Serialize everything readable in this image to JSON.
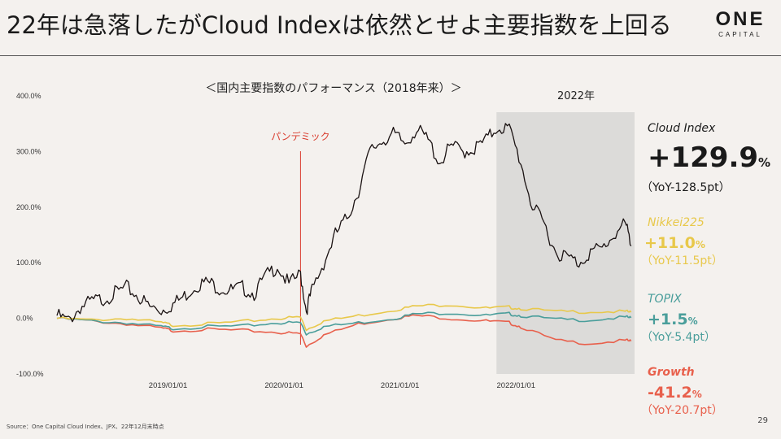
{
  "header": {
    "title": "22年は急落したがCloud Indexは依然とせよ主要指数を上回る",
    "logo_main": "ONE",
    "logo_sub": "CAPITAL"
  },
  "chart_data": {
    "type": "line",
    "title": "＜国内主要指数のパフォーマンス（2018年来）＞",
    "y_ticks": [
      "400.0%",
      "300.0%",
      "200.0%",
      "100.0%",
      "0.0%",
      "-100.0%"
    ],
    "y_values": [
      400,
      300,
      200,
      100,
      0,
      -100
    ],
    "ylim": [
      -100,
      400
    ],
    "x_ticks": [
      "2019/01/01",
      "2020/01/01",
      "2021/01/01",
      "2022/01/01"
    ],
    "annotations": {
      "pandemic_label": "パンデミック",
      "shade_label": "2022年"
    },
    "series": [
      {
        "name": "Cloud Index",
        "color": "#1a1212",
        "x": [
          2018.0,
          2018.1,
          2018.2,
          2018.3,
          2018.4,
          2018.5,
          2018.6,
          2018.7,
          2018.8,
          2018.9,
          2019.0,
          2019.1,
          2019.2,
          2019.3,
          2019.4,
          2019.5,
          2019.6,
          2019.7,
          2019.8,
          2019.9,
          2020.0,
          2020.1,
          2020.15,
          2020.2,
          2020.3,
          2020.4,
          2020.5,
          2020.6,
          2020.7,
          2020.8,
          2020.9,
          2021.0,
          2021.1,
          2021.2,
          2021.3,
          2021.4,
          2021.5,
          2021.6,
          2021.7,
          2021.8,
          2021.9,
          2022.0,
          2022.1,
          2022.2,
          2022.3,
          2022.4,
          2022.5,
          2022.6,
          2022.7,
          2022.8,
          2022.9,
          2022.95
        ],
        "y": [
          5,
          -5,
          20,
          30,
          35,
          45,
          55,
          40,
          20,
          15,
          25,
          40,
          60,
          65,
          55,
          50,
          55,
          45,
          75,
          95,
          60,
          80,
          15,
          50,
          100,
          150,
          180,
          230,
          300,
          320,
          330,
          315,
          340,
          320,
          280,
          310,
          300,
          305,
          320,
          345,
          340,
          280,
          200,
          170,
          120,
          110,
          100,
          120,
          125,
          150,
          170,
          130
        ]
      },
      {
        "name": "Nikkei225",
        "color": "#e8c84a",
        "x": [
          2018.0,
          2018.3,
          2018.6,
          2018.9,
          2019.0,
          2019.3,
          2019.6,
          2019.9,
          2020.1,
          2020.15,
          2020.3,
          2020.6,
          2020.9,
          2021.1,
          2021.4,
          2021.7,
          2021.9,
          2022.0,
          2022.3,
          2022.6,
          2022.9,
          2022.95
        ],
        "y": [
          0,
          -3,
          0,
          -8,
          -12,
          -10,
          -6,
          0,
          2,
          -20,
          -5,
          5,
          15,
          22,
          25,
          18,
          20,
          18,
          12,
          12,
          12,
          11
        ]
      },
      {
        "name": "TOPIX",
        "color": "#4a9e9b",
        "x": [
          2018.0,
          2018.3,
          2018.6,
          2018.9,
          2019.0,
          2019.3,
          2019.6,
          2019.9,
          2020.1,
          2020.15,
          2020.3,
          2020.6,
          2020.9,
          2021.1,
          2021.4,
          2021.7,
          2021.9,
          2022.0,
          2022.3,
          2022.6,
          2022.9,
          2022.95
        ],
        "y": [
          0,
          -5,
          -8,
          -15,
          -18,
          -15,
          -14,
          -8,
          -8,
          -28,
          -15,
          -8,
          0,
          8,
          10,
          5,
          8,
          5,
          -2,
          -3,
          2,
          1
        ]
      },
      {
        "name": "Growth",
        "color": "#e8604c",
        "x": [
          2018.0,
          2018.3,
          2018.6,
          2018.9,
          2019.0,
          2019.3,
          2019.6,
          2019.9,
          2020.1,
          2020.15,
          2020.3,
          2020.6,
          2020.9,
          2021.1,
          2021.4,
          2021.7,
          2021.9,
          2022.0,
          2022.3,
          2022.6,
          2022.9,
          2022.95
        ],
        "y": [
          0,
          -5,
          -10,
          -18,
          -22,
          -20,
          -22,
          -25,
          -28,
          -50,
          -30,
          -10,
          0,
          5,
          0,
          -5,
          -8,
          -15,
          -40,
          -45,
          -40,
          -41
        ]
      }
    ]
  },
  "legend": {
    "cloud": {
      "name": "Cloud Index",
      "value": "+129.9",
      "unit": "%",
      "yoy": "（YoY-128.5pt）",
      "color": "#111111"
    },
    "nikkei": {
      "name": "Nikkei225",
      "value": "+11.0",
      "unit": "%",
      "yoy": "（YoY-11.5pt）",
      "color": "#e8c84a"
    },
    "topix": {
      "name": "TOPIX",
      "value": "+1.5",
      "unit": "%",
      "yoy": "（YoY-5.4pt）",
      "color": "#4a9e9b"
    },
    "growth": {
      "name": "Growth",
      "value": "-41.2",
      "unit": "%",
      "yoy": "（YoY-20.7pt）",
      "color": "#e8604c"
    }
  },
  "footer": {
    "source": "Source：One Capital Cloud Index、JPX、22年12月末時点",
    "page": "29"
  }
}
